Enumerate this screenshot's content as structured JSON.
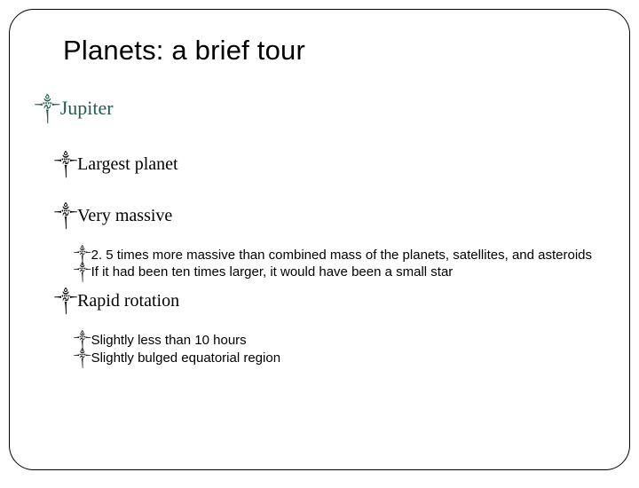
{
  "title": "Planets: a brief tour",
  "bullet_glyph": "༒",
  "items": {
    "jupiter": "Jupiter",
    "largest": "Largest planet",
    "massive": "Very massive",
    "mass_detail1": "2. 5 times more massive than combined mass of the planets, satellites, and asteroids",
    "mass_detail2": "If it had been ten times larger, it would have been a small star",
    "rotation": "Rapid rotation",
    "rot_detail1": "Slightly less than 10 hours",
    "rot_detail2": "Slightly bulged equatorial region"
  },
  "slide_number": "",
  "colors": {
    "heading_accent": "#1f5c4d",
    "text": "#000000",
    "border": "#000000",
    "background": "#ffffff"
  }
}
